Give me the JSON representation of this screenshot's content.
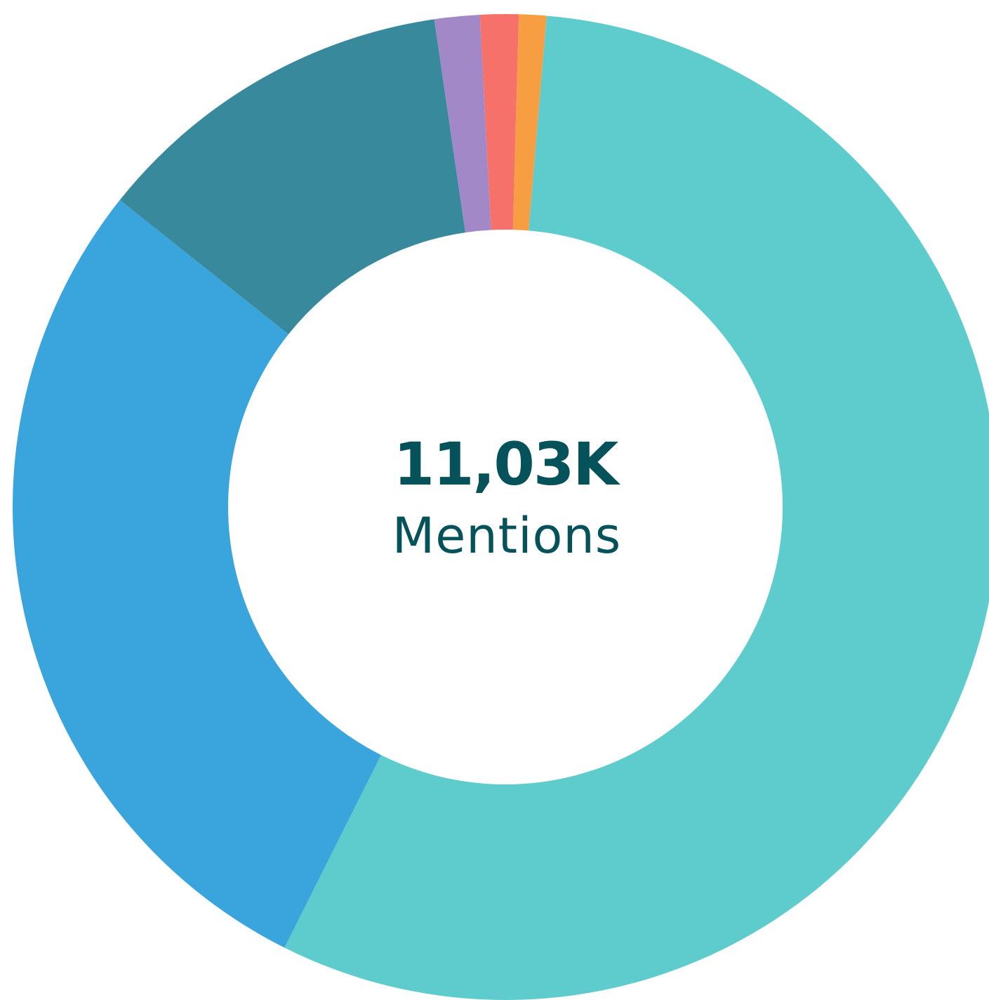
{
  "chart_data": {
    "type": "pie",
    "variant": "donut",
    "center_value": "11,03K",
    "center_label": "Mentions",
    "total": 11030,
    "start_angle_deg": -85.2,
    "direction": "clockwise",
    "slices": [
      {
        "value": 6240,
        "color": "#5ecbcc"
      },
      {
        "value": 3150,
        "color": "#39a5dc"
      },
      {
        "value": 1335,
        "color": "#39899c"
      },
      {
        "value": 165,
        "color": "#a388c8"
      },
      {
        "value": 140,
        "color": "#f6716a"
      },
      {
        "value": 0,
        "color": "#f89e42"
      }
    ],
    "colors": {
      "text": "#06525a",
      "background": "#ffffff"
    }
  }
}
